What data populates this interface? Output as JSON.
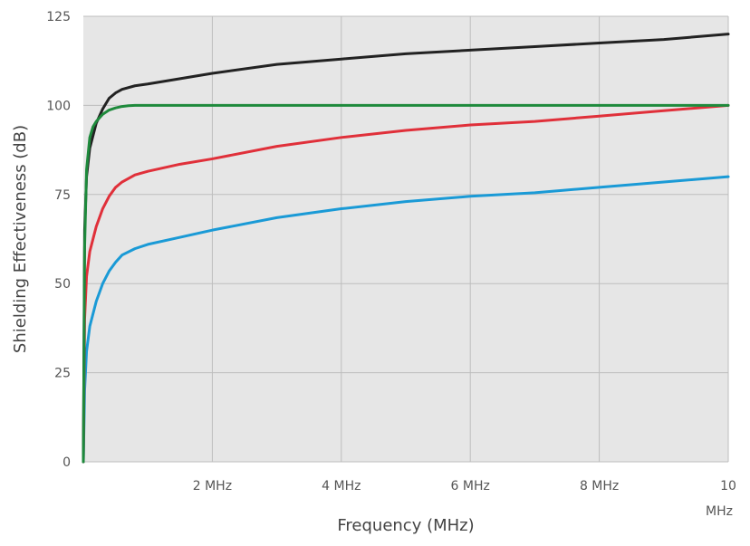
{
  "chart_data": {
    "type": "line",
    "title": "",
    "xlabel": "Frequency (MHz)",
    "ylabel": "Shielding Effectiveness (dB)",
    "xlim": [
      0,
      10
    ],
    "ylim": [
      0,
      125
    ],
    "grid": true,
    "legend": "none",
    "background": "#e6e6e6",
    "x_ticks": [
      {
        "value": 2,
        "label": "2 MHz"
      },
      {
        "value": 4,
        "label": "4 MHz"
      },
      {
        "value": 6,
        "label": "6 MHz"
      },
      {
        "value": 8,
        "label": "8 MHz"
      },
      {
        "value": 10,
        "label": "10",
        "label2": "MHz"
      }
    ],
    "y_ticks": [
      {
        "value": 0,
        "label": "0"
      },
      {
        "value": 25,
        "label": "25"
      },
      {
        "value": 50,
        "label": "50"
      },
      {
        "value": 75,
        "label": "75"
      },
      {
        "value": 100,
        "label": "100"
      },
      {
        "value": 125,
        "label": "125"
      }
    ],
    "series": [
      {
        "color": "#1a9ad6",
        "x": [
          0,
          0.02,
          0.05,
          0.1,
          0.2,
          0.3,
          0.4,
          0.5,
          0.6,
          0.8,
          1,
          1.5,
          2,
          3,
          4,
          5,
          6,
          7,
          8,
          9,
          10
        ],
        "y": [
          0,
          20,
          31,
          38,
          45,
          50,
          53.5,
          56,
          58,
          59.8,
          61,
          63,
          65,
          68.5,
          71,
          73,
          74.5,
          75.5,
          77,
          78.5,
          80
        ]
      },
      {
        "color": "#e0303a",
        "x": [
          0,
          0.02,
          0.05,
          0.1,
          0.2,
          0.3,
          0.4,
          0.5,
          0.6,
          0.8,
          1,
          1.5,
          2,
          3,
          4,
          5,
          6,
          7,
          8,
          9,
          10
        ],
        "y": [
          0,
          40,
          52,
          59,
          66,
          71,
          74.5,
          77,
          78.5,
          80.5,
          81.5,
          83.5,
          85,
          88.5,
          91,
          93,
          94.5,
          95.5,
          97,
          98.5,
          100
        ]
      },
      {
        "color": "#222222",
        "x": [
          0,
          0.02,
          0.05,
          0.1,
          0.2,
          0.3,
          0.4,
          0.5,
          0.6,
          0.8,
          1,
          1.5,
          2,
          3,
          4,
          5,
          6,
          7,
          8,
          9,
          10
        ],
        "y": [
          0,
          65,
          80,
          88,
          95,
          99,
          102,
          103.5,
          104.5,
          105.5,
          106,
          107.5,
          109,
          111.5,
          113,
          114.5,
          115.5,
          116.5,
          117.5,
          118.5,
          120
        ]
      },
      {
        "color": "#1e8a3c",
        "x": [
          0,
          0.02,
          0.05,
          0.1,
          0.15,
          0.2,
          0.3,
          0.4,
          0.5,
          0.6,
          0.7,
          0.8,
          0.9,
          1,
          10
        ],
        "y": [
          0,
          60,
          82,
          91,
          94,
          95.5,
          97.5,
          98.7,
          99.3,
          99.7,
          99.9,
          100,
          100,
          100,
          100
        ]
      }
    ]
  }
}
